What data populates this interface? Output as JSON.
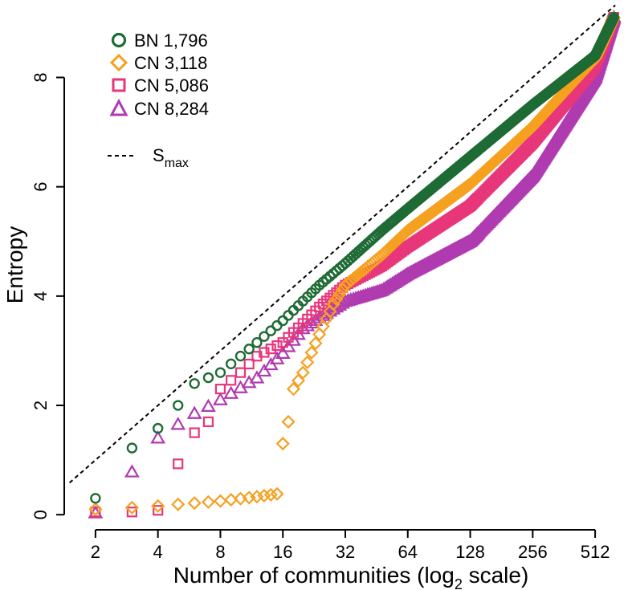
{
  "chart_data": {
    "type": "scatter",
    "title": "",
    "xlabel_main": "Number of communities (log",
    "xlabel_sub": "2",
    "xlabel_tail": " scale)",
    "ylabel": "Entropy",
    "x_scale": "log2",
    "xlim_log2": [
      0.5,
      9.5
    ],
    "ylim": [
      -0.1,
      9.3
    ],
    "x_ticks": [
      2,
      4,
      8,
      16,
      32,
      64,
      128,
      256,
      512
    ],
    "x_tick_labels": [
      "2",
      "4",
      "8",
      "16",
      "32",
      "64",
      "128",
      "256",
      "512"
    ],
    "y_ticks": [
      0,
      2,
      4,
      6,
      8
    ],
    "y_tick_labels": [
      "0",
      "2",
      "4",
      "6",
      "8"
    ],
    "legend_position": "top-left",
    "series": [
      {
        "name": "BN 1,796",
        "marker": "circle",
        "color": "#1e6b35",
        "n_max": 630,
        "curve": [
          [
            2,
            0.3
          ],
          [
            3,
            1.22
          ],
          [
            4,
            1.58
          ],
          [
            5,
            2.0
          ],
          [
            6,
            2.4
          ],
          [
            8,
            2.6
          ],
          [
            12,
            3.15
          ],
          [
            16,
            3.55
          ],
          [
            24,
            4.2
          ],
          [
            32,
            4.6
          ],
          [
            48,
            5.2
          ],
          [
            64,
            5.6
          ],
          [
            128,
            6.55
          ],
          [
            256,
            7.5
          ],
          [
            512,
            8.4
          ],
          [
            630,
            9.1
          ]
        ]
      },
      {
        "name": "CN 3,118",
        "marker": "diamond",
        "color": "#f5a01f",
        "n_max": 630,
        "curve": [
          [
            2,
            0.1
          ],
          [
            3,
            0.13
          ],
          [
            4,
            0.16
          ],
          [
            8,
            0.25
          ],
          [
            12,
            0.33
          ],
          [
            15,
            0.38
          ],
          [
            16,
            1.3
          ],
          [
            17,
            1.7
          ],
          [
            18,
            2.3
          ],
          [
            20,
            2.6
          ],
          [
            24,
            3.3
          ],
          [
            28,
            3.85
          ],
          [
            32,
            4.2
          ],
          [
            48,
            4.75
          ],
          [
            64,
            5.2
          ],
          [
            128,
            6.05
          ],
          [
            256,
            7.1
          ],
          [
            512,
            8.35
          ],
          [
            630,
            9.1
          ]
        ]
      },
      {
        "name": "CN 5,086",
        "marker": "square",
        "color": "#e8367a",
        "n_max": 630,
        "curve": [
          [
            2,
            0.05
          ],
          [
            3,
            0.05
          ],
          [
            4,
            0.08
          ],
          [
            5,
            0.93
          ],
          [
            6,
            1.5
          ],
          [
            7,
            1.7
          ],
          [
            8,
            2.3
          ],
          [
            10,
            2.6
          ],
          [
            12,
            2.9
          ],
          [
            16,
            3.15
          ],
          [
            20,
            3.5
          ],
          [
            24,
            3.8
          ],
          [
            32,
            4.2
          ],
          [
            48,
            4.55
          ],
          [
            64,
            4.9
          ],
          [
            128,
            5.65
          ],
          [
            256,
            6.8
          ],
          [
            512,
            8.2
          ],
          [
            630,
            9.1
          ]
        ]
      },
      {
        "name": "CN 8,284",
        "marker": "triangle",
        "color": "#b03ab0",
        "n_max": 630,
        "curve": [
          [
            2,
            0.03
          ],
          [
            3,
            0.78
          ],
          [
            4,
            1.4
          ],
          [
            5,
            1.65
          ],
          [
            6,
            1.85
          ],
          [
            7,
            1.98
          ],
          [
            8,
            2.1
          ],
          [
            12,
            2.5
          ],
          [
            16,
            2.95
          ],
          [
            20,
            3.4
          ],
          [
            24,
            3.6
          ],
          [
            32,
            3.9
          ],
          [
            48,
            4.1
          ],
          [
            64,
            4.4
          ],
          [
            128,
            5.0
          ],
          [
            256,
            6.2
          ],
          [
            512,
            8.0
          ],
          [
            630,
            9.1
          ]
        ]
      }
    ],
    "reference_line": {
      "name": "S",
      "sub": "max",
      "style": "dashed",
      "color": "#000000",
      "from_n": 1.5,
      "to_n": 640
    }
  }
}
